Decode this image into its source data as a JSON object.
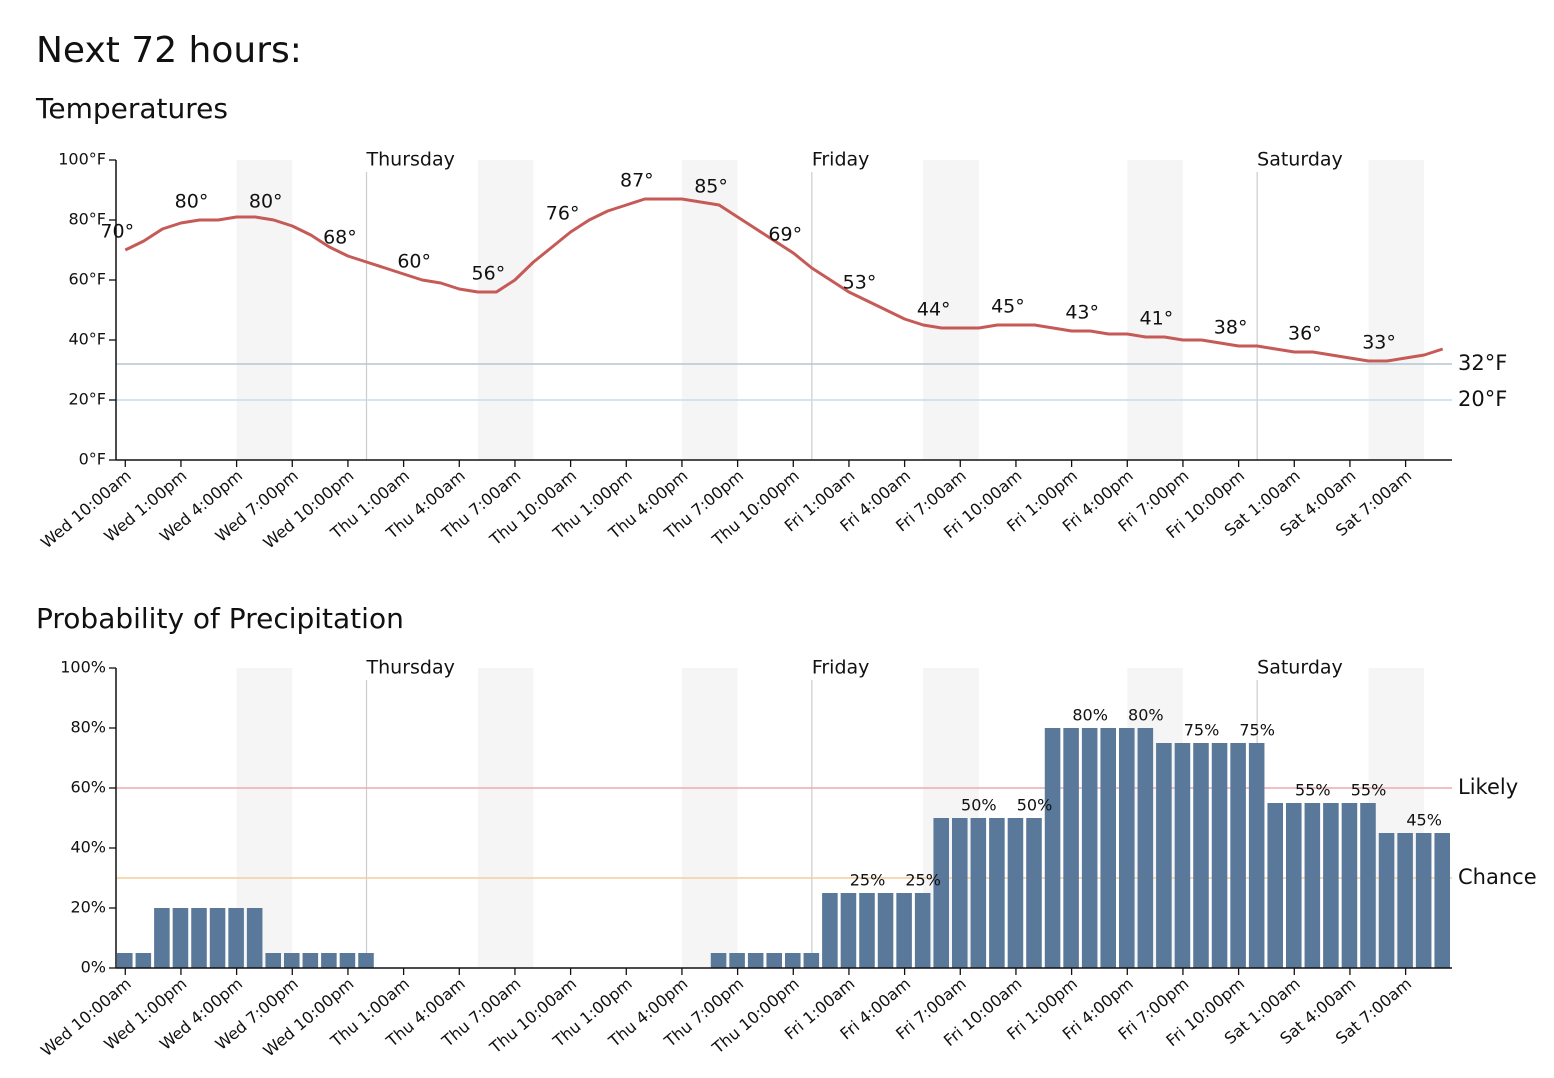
{
  "heading": "Next 72 hours:",
  "chart_data": [
    {
      "type": "line",
      "title": "Temperatures",
      "color": "#c55a57",
      "categories": [
        "Wed 10:00am",
        null,
        null,
        "Wed 1:00pm",
        null,
        null,
        "Wed 4:00pm",
        null,
        null,
        "Wed 7:00pm",
        null,
        null,
        "Wed 10:00pm",
        null,
        null,
        "Thu 1:00am",
        null,
        null,
        "Thu 4:00am",
        null,
        null,
        "Thu 7:00am",
        null,
        null,
        "Thu 10:00am",
        null,
        null,
        "Thu 1:00pm",
        null,
        null,
        "Thu 4:00pm",
        null,
        null,
        "Thu 7:00pm",
        null,
        null,
        "Thu 10:00pm",
        null,
        null,
        "Fri 1:00am",
        null,
        null,
        "Fri 4:00am",
        null,
        null,
        "Fri 7:00am",
        null,
        null,
        "Fri 10:00am",
        null,
        null,
        "Fri 1:00pm",
        null,
        null,
        "Fri 4:00pm",
        null,
        null,
        "Fri 7:00pm",
        null,
        null,
        "Fri 10:00pm",
        null,
        null,
        "Sat 1:00am",
        null,
        null,
        "Sat 4:00am",
        null,
        null,
        "Sat 7:00am",
        null,
        null
      ],
      "values": [
        70,
        73,
        77,
        79,
        80,
        80,
        81,
        81,
        80,
        78,
        75,
        71,
        68,
        66,
        64,
        62,
        60,
        59,
        57,
        56,
        56,
        60,
        66,
        71,
        76,
        80,
        83,
        85,
        87,
        87,
        87,
        86,
        85,
        81,
        77,
        73,
        69,
        64,
        60,
        56,
        53,
        50,
        47,
        45,
        44,
        44,
        44,
        45,
        45,
        45,
        44,
        43,
        43,
        42,
        42,
        41,
        41,
        40,
        40,
        39,
        38,
        38,
        37,
        36,
        36,
        35,
        34,
        33,
        33,
        34,
        35,
        37
      ],
      "value_labels": [
        "70°",
        null,
        null,
        null,
        "80°",
        null,
        null,
        null,
        "80°",
        null,
        null,
        null,
        "68°",
        null,
        null,
        null,
        "60°",
        null,
        null,
        null,
        "56°",
        null,
        null,
        null,
        "76°",
        null,
        null,
        null,
        "87°",
        null,
        null,
        null,
        "85°",
        null,
        null,
        null,
        "69°",
        null,
        null,
        null,
        "53°",
        null,
        null,
        null,
        "44°",
        null,
        null,
        null,
        "45°",
        null,
        null,
        null,
        "43°",
        null,
        null,
        null,
        "41°",
        null,
        null,
        null,
        "38°",
        null,
        null,
        null,
        "36°",
        null,
        null,
        null,
        "33°",
        null,
        null,
        null
      ],
      "ylim": [
        0,
        100
      ],
      "yticks": [
        {
          "value": 0,
          "label": "0°F"
        },
        {
          "value": 20,
          "label": "20°F"
        },
        {
          "value": 40,
          "label": "40°F"
        },
        {
          "value": 60,
          "label": "60°F"
        },
        {
          "value": 80,
          "label": "80°F"
        },
        {
          "value": 100,
          "label": "100°F"
        }
      ],
      "reference_lines": [
        {
          "value": 32,
          "label": "32°F",
          "color": "#b4c6d4",
          "label_color": "#1c3444"
        },
        {
          "value": 20,
          "label": "20°F",
          "color": "#c4deee",
          "label_color": "#1c3444"
        }
      ],
      "day_labels": [
        "Thursday",
        "Friday",
        "Saturday"
      ]
    },
    {
      "type": "bar",
      "title": "Probability of Precipitation",
      "color": "#5a7899",
      "categories": [
        "Wed 10:00am",
        null,
        null,
        "Wed 1:00pm",
        null,
        null,
        "Wed 4:00pm",
        null,
        null,
        "Wed 7:00pm",
        null,
        null,
        "Wed 10:00pm",
        null,
        null,
        "Thu 1:00am",
        null,
        null,
        "Thu 4:00am",
        null,
        null,
        "Thu 7:00am",
        null,
        null,
        "Thu 10:00am",
        null,
        null,
        "Thu 1:00pm",
        null,
        null,
        "Thu 4:00pm",
        null,
        null,
        "Thu 7:00pm",
        null,
        null,
        "Thu 10:00pm",
        null,
        null,
        "Fri 1:00am",
        null,
        null,
        "Fri 4:00am",
        null,
        null,
        "Fri 7:00am",
        null,
        null,
        "Fri 10:00am",
        null,
        null,
        "Fri 1:00pm",
        null,
        null,
        "Fri 4:00pm",
        null,
        null,
        "Fri 7:00pm",
        null,
        null,
        "Fri 10:00pm",
        null,
        null,
        "Sat 1:00am",
        null,
        null,
        "Sat 4:00am",
        null,
        null,
        "Sat 7:00am",
        null,
        null
      ],
      "values": [
        5,
        5,
        20,
        20,
        20,
        20,
        20,
        20,
        5,
        5,
        5,
        5,
        5,
        5,
        0,
        0,
        0,
        0,
        0,
        0,
        0,
        0,
        0,
        0,
        0,
        0,
        0,
        0,
        0,
        0,
        0,
        0,
        5,
        5,
        5,
        5,
        5,
        5,
        25,
        25,
        25,
        25,
        25,
        25,
        50,
        50,
        50,
        50,
        50,
        50,
        80,
        80,
        80,
        80,
        80,
        80,
        75,
        75,
        75,
        75,
        75,
        75,
        55,
        55,
        55,
        55,
        55,
        55,
        45,
        45,
        45,
        45
      ],
      "value_labels": [
        null,
        null,
        null,
        null,
        null,
        null,
        null,
        null,
        null,
        null,
        null,
        null,
        null,
        null,
        null,
        null,
        null,
        null,
        null,
        null,
        null,
        null,
        null,
        null,
        null,
        null,
        null,
        null,
        null,
        null,
        null,
        null,
        null,
        null,
        null,
        null,
        null,
        null,
        null,
        null,
        "25%",
        null,
        null,
        "25%",
        null,
        null,
        "50%",
        null,
        null,
        "50%",
        null,
        null,
        "80%",
        null,
        null,
        "80%",
        null,
        null,
        "75%",
        null,
        null,
        "75%",
        null,
        null,
        "55%",
        null,
        null,
        "55%",
        null,
        null,
        "45%",
        null
      ],
      "ylim": [
        0,
        100
      ],
      "yticks": [
        {
          "value": 0,
          "label": "0%"
        },
        {
          "value": 20,
          "label": "20%"
        },
        {
          "value": 40,
          "label": "40%"
        },
        {
          "value": 60,
          "label": "60%"
        },
        {
          "value": 80,
          "label": "80%"
        },
        {
          "value": 100,
          "label": "100%"
        }
      ],
      "reference_lines": [
        {
          "value": 60,
          "label": "Likely",
          "color": "#f2a9b1",
          "label_color": "#4a0c14"
        },
        {
          "value": 30,
          "label": "Chance",
          "color": "#f6cd98",
          "label_color": "#4a3000"
        }
      ],
      "day_labels": [
        "Thursday",
        "Friday",
        "Saturday"
      ]
    }
  ]
}
